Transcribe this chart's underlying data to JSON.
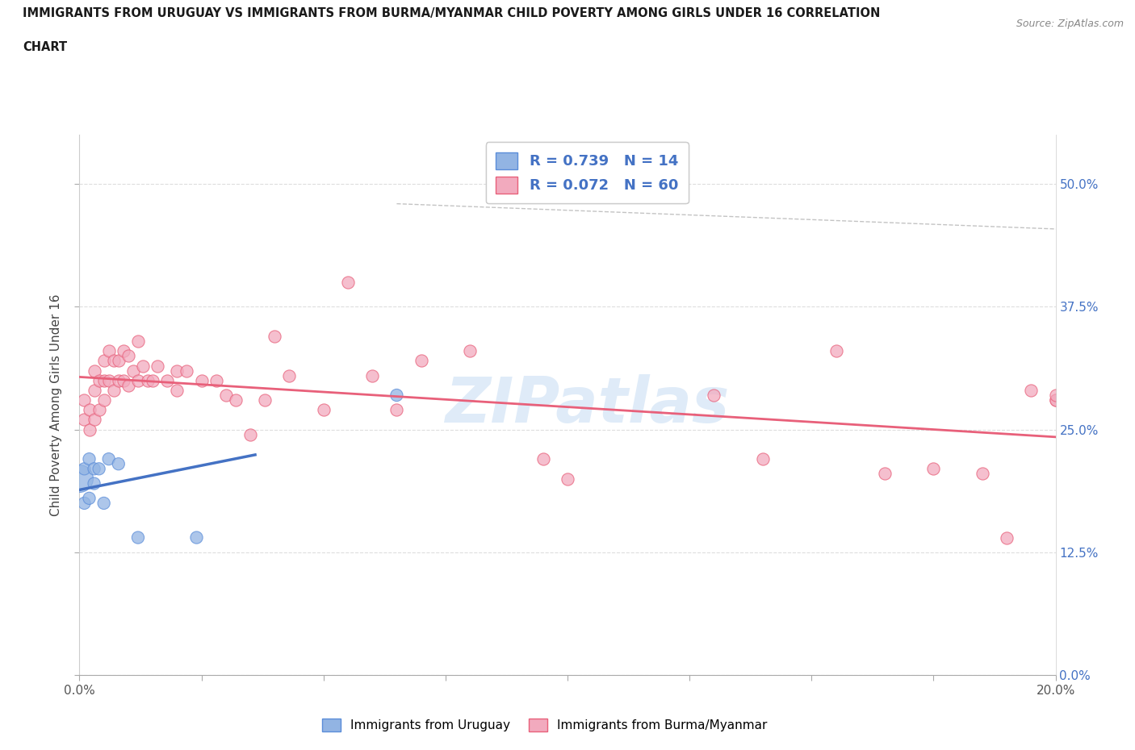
{
  "title_line1": "IMMIGRANTS FROM URUGUAY VS IMMIGRANTS FROM BURMA/MYANMAR CHILD POVERTY AMONG GIRLS UNDER 16 CORRELATION",
  "title_line2": "CHART",
  "source": "Source: ZipAtlas.com",
  "ylabel": "Child Poverty Among Girls Under 16",
  "xlim": [
    0.0,
    0.2
  ],
  "ylim": [
    0.0,
    0.55
  ],
  "yticks": [
    0.0,
    0.125,
    0.25,
    0.375,
    0.5
  ],
  "ytick_labels_right": [
    "0.0%",
    "12.5%",
    "25.0%",
    "37.5%",
    "50.0%"
  ],
  "xticks": [
    0.0,
    0.025,
    0.05,
    0.075,
    0.1,
    0.125,
    0.15,
    0.175,
    0.2
  ],
  "xtick_labels": [
    "0.0%",
    "",
    "",
    "",
    "",
    "",
    "",
    "",
    "20.0%"
  ],
  "watermark": "ZIPatlas",
  "R_uruguay": 0.739,
  "N_uruguay": 14,
  "R_burma": 0.072,
  "N_burma": 60,
  "color_uruguay": "#92B4E3",
  "color_burma": "#F2AABE",
  "edge_color_uruguay": "#5B8DD9",
  "edge_color_burma": "#E8607A",
  "line_color_uruguay": "#4472C4",
  "line_color_burma": "#E8607A",
  "uruguay_x": [
    0.0,
    0.001,
    0.001,
    0.002,
    0.002,
    0.003,
    0.003,
    0.004,
    0.005,
    0.006,
    0.008,
    0.012,
    0.024,
    0.065
  ],
  "uruguay_y": [
    0.2,
    0.175,
    0.21,
    0.18,
    0.22,
    0.195,
    0.21,
    0.21,
    0.175,
    0.22,
    0.215,
    0.14,
    0.14,
    0.285
  ],
  "uruguay_size_large": 600,
  "uruguay_size_small": 120,
  "uruguay_large_idx": 0,
  "burma_x": [
    0.001,
    0.001,
    0.002,
    0.002,
    0.003,
    0.003,
    0.003,
    0.004,
    0.004,
    0.005,
    0.005,
    0.005,
    0.006,
    0.006,
    0.007,
    0.007,
    0.008,
    0.008,
    0.009,
    0.009,
    0.01,
    0.01,
    0.011,
    0.012,
    0.012,
    0.013,
    0.014,
    0.015,
    0.016,
    0.018,
    0.02,
    0.02,
    0.022,
    0.025,
    0.028,
    0.03,
    0.032,
    0.035,
    0.038,
    0.04,
    0.043,
    0.05,
    0.055,
    0.06,
    0.065,
    0.07,
    0.08,
    0.095,
    0.1,
    0.13,
    0.14,
    0.155,
    0.165,
    0.175,
    0.185,
    0.19,
    0.195,
    0.2,
    0.2,
    0.2
  ],
  "burma_y": [
    0.26,
    0.28,
    0.25,
    0.27,
    0.26,
    0.29,
    0.31,
    0.27,
    0.3,
    0.28,
    0.3,
    0.32,
    0.3,
    0.33,
    0.29,
    0.32,
    0.3,
    0.32,
    0.3,
    0.33,
    0.295,
    0.325,
    0.31,
    0.3,
    0.34,
    0.315,
    0.3,
    0.3,
    0.315,
    0.3,
    0.29,
    0.31,
    0.31,
    0.3,
    0.3,
    0.285,
    0.28,
    0.245,
    0.28,
    0.345,
    0.305,
    0.27,
    0.4,
    0.305,
    0.27,
    0.32,
    0.33,
    0.22,
    0.2,
    0.285,
    0.22,
    0.33,
    0.205,
    0.21,
    0.205,
    0.14,
    0.29,
    0.28,
    0.28,
    0.285
  ],
  "burma_size": 120,
  "grid_color": "#DDDDDD",
  "background_color": "#FFFFFF",
  "legend_label_uruguay": "Immigrants from Uruguay",
  "legend_label_burma": "Immigrants from Burma/Myanmar"
}
